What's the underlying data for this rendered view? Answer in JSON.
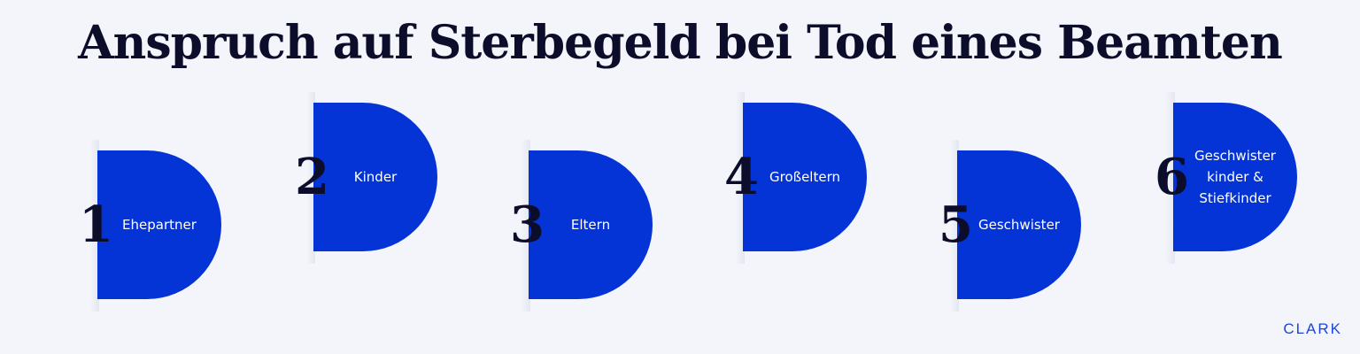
{
  "title": "Anspruch auf Sterbegeld bei Tod eines Beamten",
  "items": [
    {
      "number": "1",
      "label": "Ehepartner"
    },
    {
      "number": "2",
      "label": "Kinder"
    },
    {
      "number": "3",
      "label": "Eltern"
    },
    {
      "number": "4",
      "label": "Großeltern"
    },
    {
      "number": "5",
      "label": "Geschwister"
    },
    {
      "number": "6",
      "label": "Geschwister kinder & Stiefkinder"
    }
  ],
  "logo": "CLARK",
  "colors": {
    "accent": "#0534d6",
    "text": "#0c0d2b",
    "background": "#f3f5fa"
  }
}
